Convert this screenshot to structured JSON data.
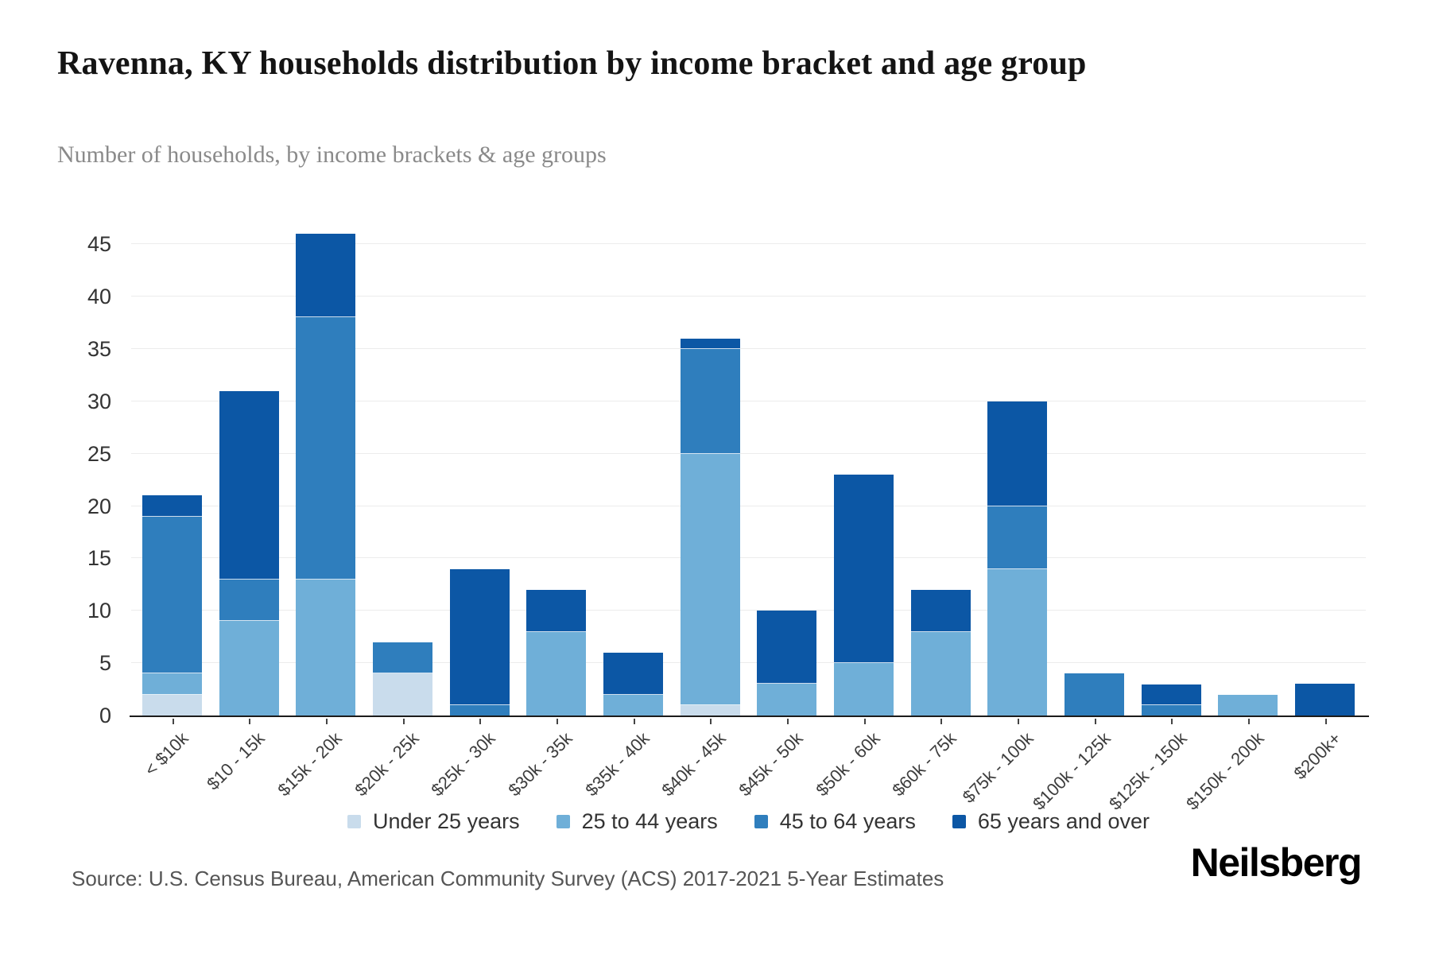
{
  "header": {
    "title": "Ravenna, KY households distribution by income bracket and age group",
    "subtitle": "Number of households, by income brackets & age groups"
  },
  "footer": {
    "source": "Source: U.S. Census Bureau, American Community Survey (ACS) 2017-2021 5-Year Estimates",
    "brand": "Neilsberg"
  },
  "chart_data": {
    "type": "bar",
    "stacked": true,
    "title": "Ravenna, KY households distribution by income bracket and age group",
    "subtitle": "Number of households, by income brackets & age groups",
    "xlabel": "",
    "ylabel": "",
    "ylim": [
      0,
      46
    ],
    "yticks": [
      0,
      5,
      10,
      15,
      20,
      25,
      30,
      35,
      40,
      45
    ],
    "grid": true,
    "legend_position": "bottom",
    "categories": [
      "< $10k",
      "$10 - 15k",
      "$15k - 20k",
      "$20k - 25k",
      "$25k - 30k",
      "$30k - 35k",
      "$35k - 40k",
      "$40k - 45k",
      "$45k - 50k",
      "$50k - 60k",
      "$60k - 75k",
      "$75k - 100k",
      "$100k - 125k",
      "$125k - 150k",
      "$150k - 200k",
      "$200k+"
    ],
    "series": [
      {
        "name": "Under 25 years",
        "color": "#c9dcec",
        "values": [
          2,
          0,
          0,
          4,
          0,
          0,
          0,
          1,
          0,
          0,
          0,
          0,
          0,
          0,
          0,
          0
        ]
      },
      {
        "name": "25 to 44 years",
        "color": "#6fafd8",
        "values": [
          2,
          9,
          13,
          0,
          0,
          8,
          2,
          24,
          3,
          5,
          8,
          14,
          0,
          0,
          2,
          0
        ]
      },
      {
        "name": "45 to 64 years",
        "color": "#2f7ebd",
        "values": [
          15,
          4,
          25,
          3,
          1,
          0,
          0,
          10,
          0,
          0,
          0,
          6,
          4,
          1,
          0,
          0
        ]
      },
      {
        "name": "65 years and over",
        "color": "#0c57a5",
        "values": [
          2,
          18,
          8,
          0,
          13,
          4,
          4,
          1,
          7,
          18,
          4,
          10,
          0,
          2,
          0,
          3
        ]
      }
    ],
    "totals": [
      21,
      31,
      46,
      7,
      14,
      12,
      6,
      36,
      10,
      23,
      12,
      30,
      4,
      3,
      2,
      3
    ]
  }
}
